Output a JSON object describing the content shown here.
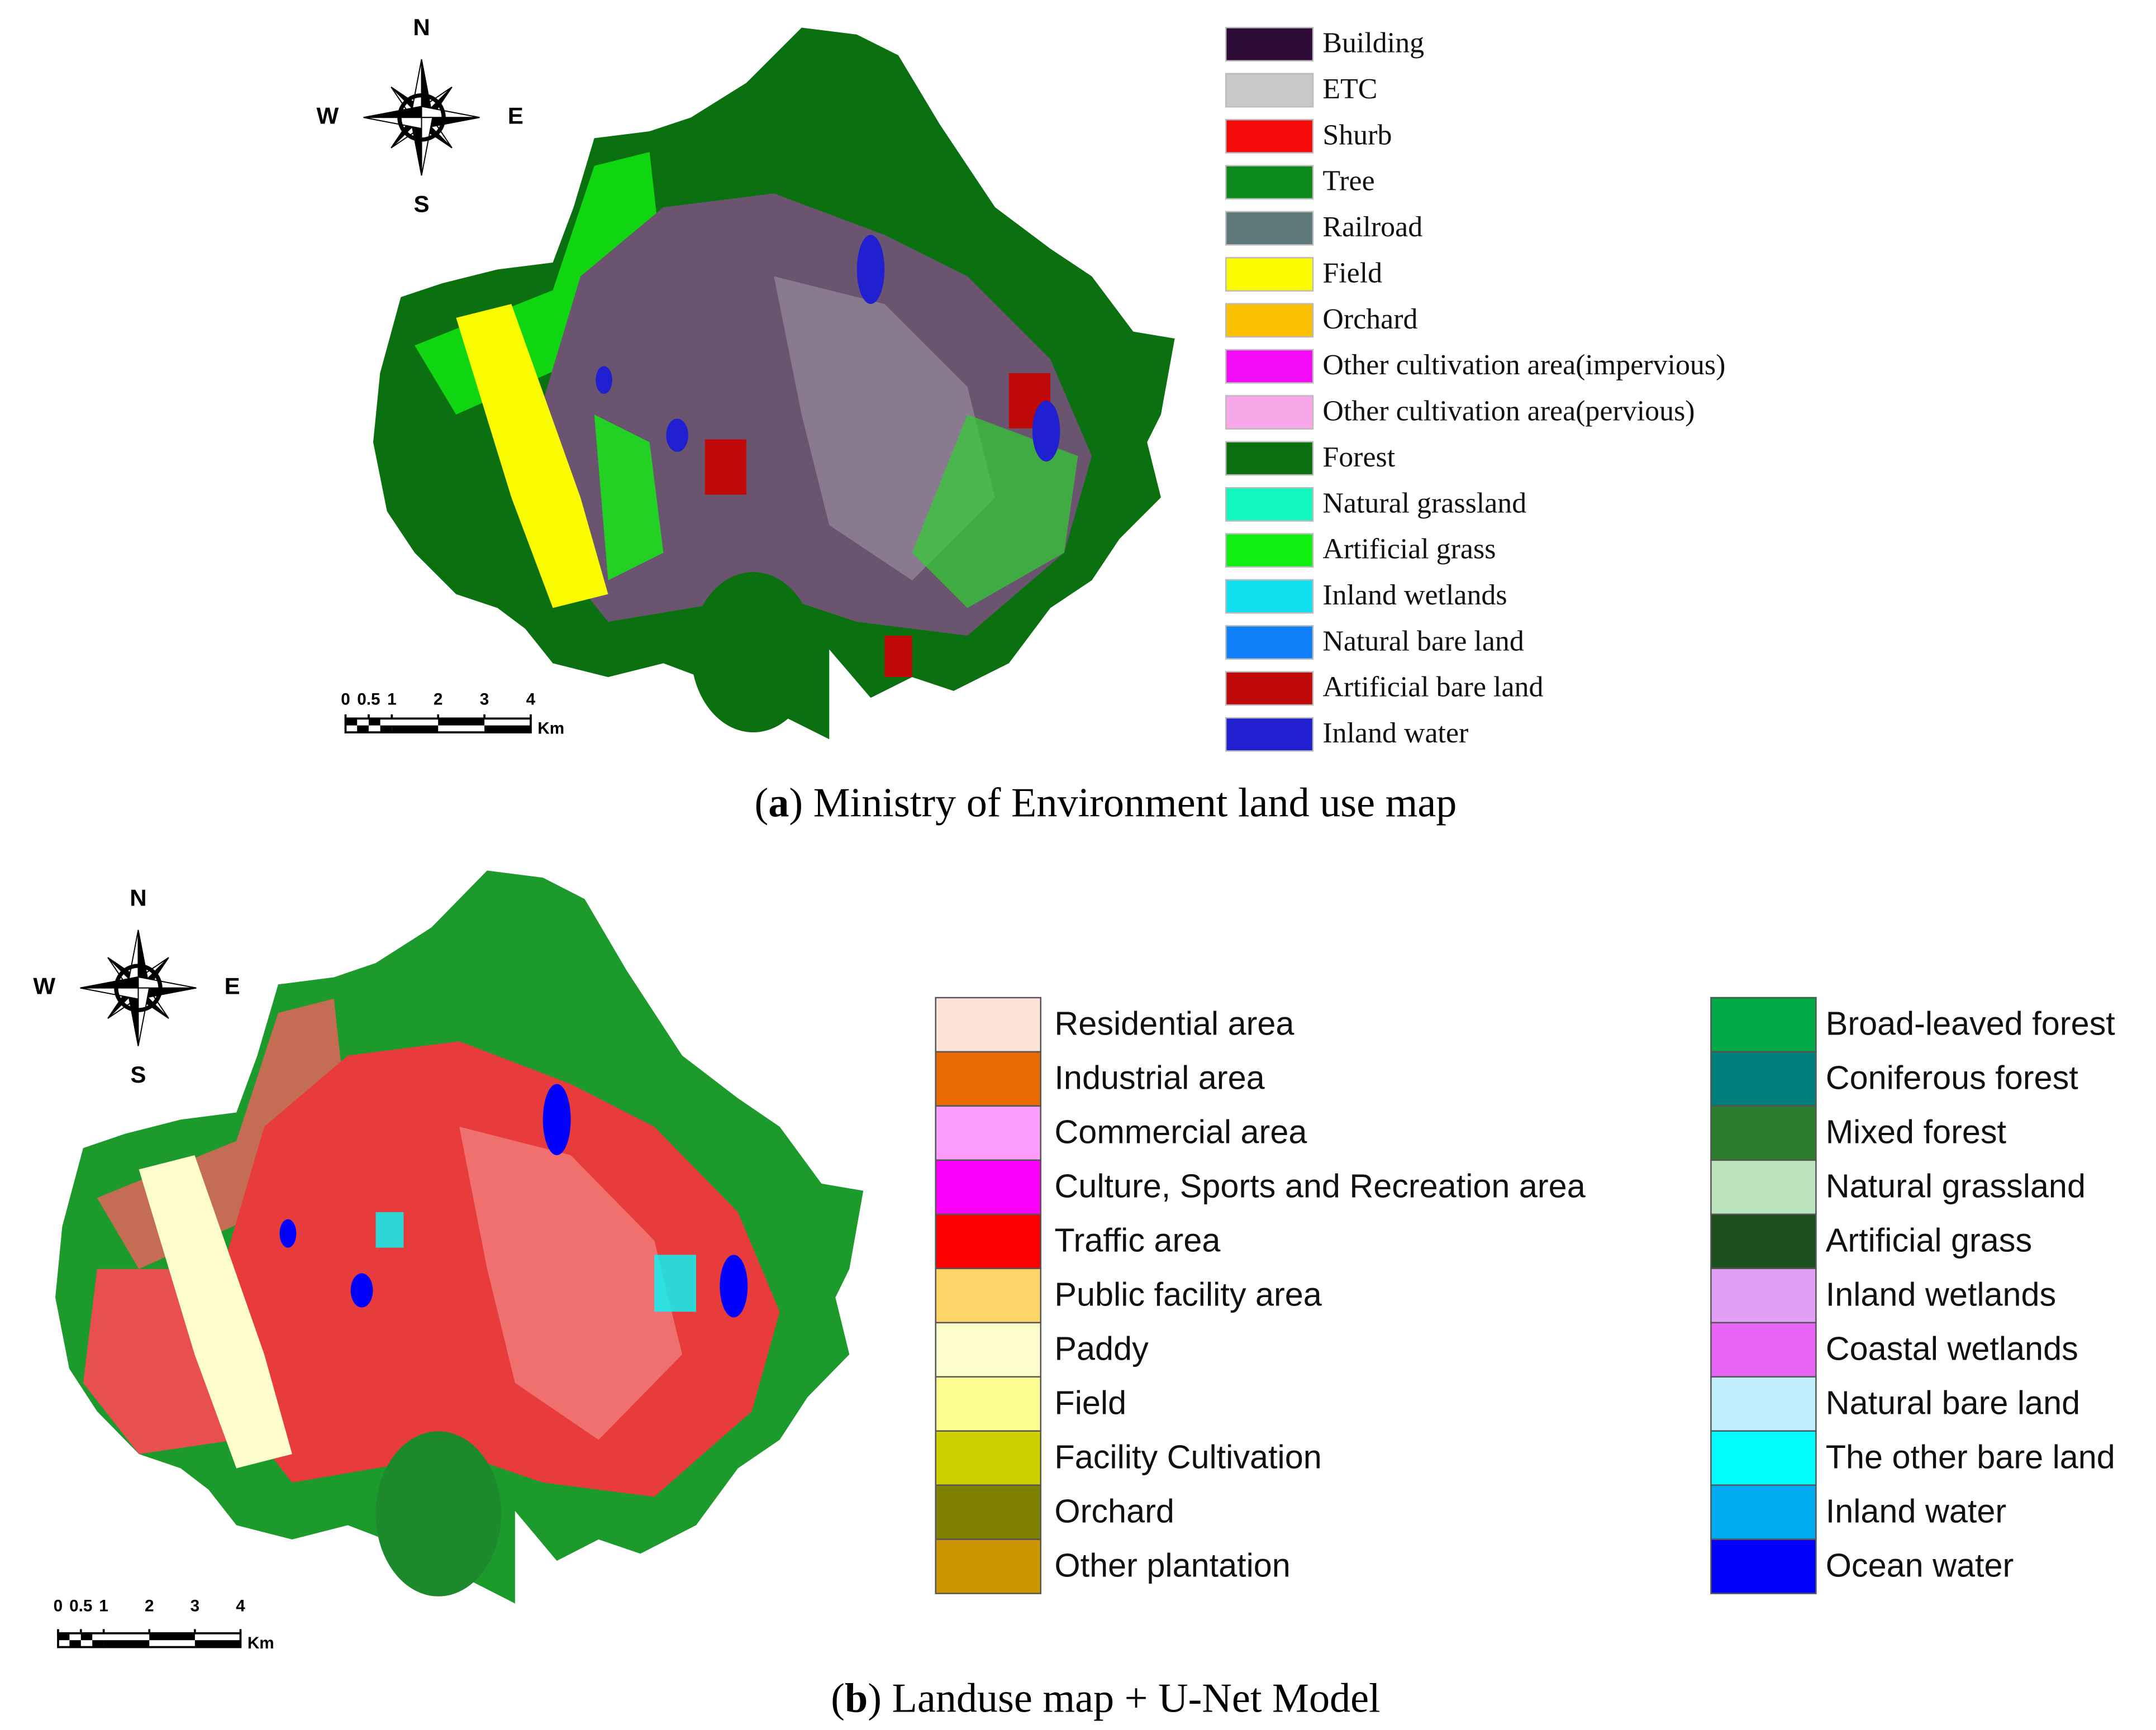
{
  "panels": [
    {
      "compass": {
        "north": "N",
        "south": "S",
        "west": "W",
        "east": "E"
      },
      "scale_ticks": [
        0,
        0.5,
        1,
        2,
        3,
        4
      ],
      "scale_unit": "Km",
      "legend": [
        {
          "label": "Building",
          "color": "#2e0a36"
        },
        {
          "label": "ETC",
          "color": "#c8c8c8"
        },
        {
          "label": "Shurb",
          "color": "#f50a0a"
        },
        {
          "label": "Tree",
          "color": "#0c8a1a"
        },
        {
          "label": "Railroad",
          "color": "#5c7878"
        },
        {
          "label": "Field",
          "color": "#fafa00"
        },
        {
          "label": "Orchard",
          "color": "#fac000"
        },
        {
          "label": "Other cultivation area(impervious)",
          "color": "#f50af5"
        },
        {
          "label": "Other cultivation area(pervious)",
          "color": "#f8a8e8"
        },
        {
          "label": "Forest",
          "color": "#0a7010"
        },
        {
          "label": "Natural grassland",
          "color": "#10f8c0"
        },
        {
          "label": "Artificial grass",
          "color": "#10f010"
        },
        {
          "label": "Inland wetlands",
          "color": "#10e0f0"
        },
        {
          "label": "Natural bare land",
          "color": "#1080f8"
        },
        {
          "label": "Artificial bare land",
          "color": "#c00a0a"
        },
        {
          "label": "Inland water",
          "color": "#2020d0"
        }
      ],
      "caption": [
        "(",
        "a",
        ") Ministry of Environment land use map"
      ]
    },
    {
      "compass": {
        "north": "N",
        "south": "S",
        "west": "W",
        "east": "E"
      },
      "scale_ticks": [
        0,
        0.5,
        1,
        2,
        3,
        4
      ],
      "scale_unit": "Km",
      "legend": [
        {
          "label": "Residential area",
          "color": "#fde4d6"
        },
        {
          "label": "Industrial area",
          "color": "#e86a00"
        },
        {
          "label": "Commercial area",
          "color": "#fc9cfc"
        },
        {
          "label": "Culture, Sports and Recreation area",
          "color": "#fc00fc"
        },
        {
          "label": "Traffic area",
          "color": "#fc0000"
        },
        {
          "label": "Public facility area",
          "color": "#fcd468"
        },
        {
          "label": "Paddy",
          "color": "#fcfccc"
        },
        {
          "label": "Field",
          "color": "#fcfc90"
        },
        {
          "label": "Facility Cultivation",
          "color": "#d0d000"
        },
        {
          "label": "Orchard",
          "color": "#808000"
        },
        {
          "label": "Other plantation",
          "color": "#cc9400"
        },
        {
          "label": "Broad-leaved forest",
          "color": "#00aa44"
        },
        {
          "label": "Coniferous forest",
          "color": "#00807c"
        },
        {
          "label": "Mixed forest",
          "color": "#2c7c2c"
        },
        {
          "label": "Natural grassland",
          "color": "#bce4bc"
        },
        {
          "label": "Artificial grass",
          "color": "#1c501c"
        },
        {
          "label": "Inland wetlands",
          "color": "#e0a0f4"
        },
        {
          "label": "Coastal wetlands",
          "color": "#e864f4"
        },
        {
          "label": "Natural bare land",
          "color": "#c0ecfc"
        },
        {
          "label": "The other bare land",
          "color": "#00fcfc"
        },
        {
          "label": "Inland water",
          "color": "#00aaee"
        },
        {
          "label": "Ocean water",
          "color": "#0000fc"
        }
      ],
      "caption": [
        "(",
        "b",
        ") Landuse map + U-Net Model"
      ]
    }
  ]
}
